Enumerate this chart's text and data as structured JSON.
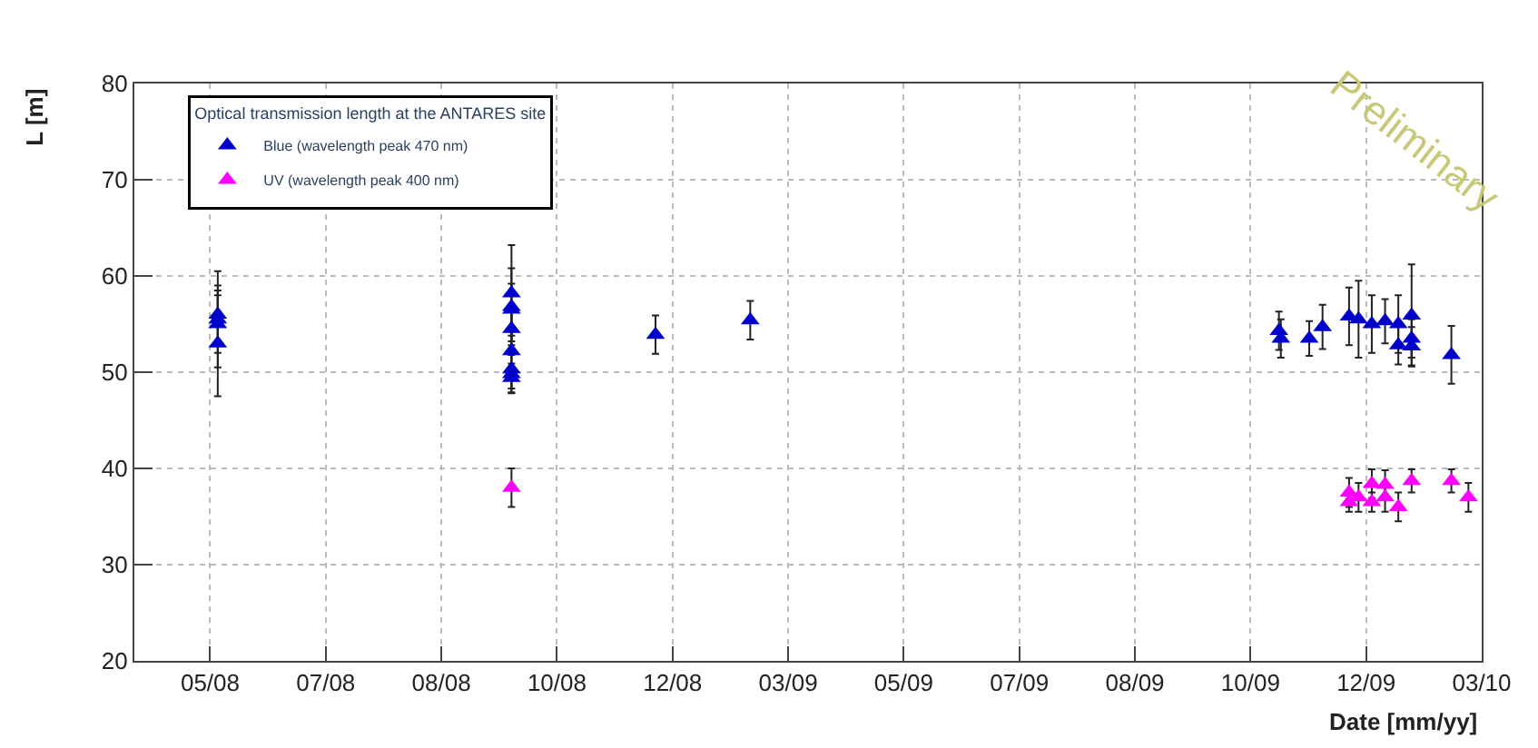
{
  "chart_data": {
    "type": "scatter",
    "xlabel": "Date [mm/yy]",
    "ylabel": "L [m]",
    "legend_title": "Optical transmission length at the ANTARES site",
    "annotations": [
      "Preliminary"
    ],
    "xlim": [
      "2008-03-31",
      "2010-03-12"
    ],
    "xticks": [
      {
        "value": "2008-05-10",
        "label": "05/08"
      },
      {
        "value": "2008-07-10",
        "label": "07/08"
      },
      {
        "value": "2008-09-09",
        "label": "08/08"
      },
      {
        "value": "2008-11-09",
        "label": "10/08"
      },
      {
        "value": "2009-01-09",
        "label": "12/08"
      },
      {
        "value": "2009-03-11",
        "label": "03/09"
      },
      {
        "value": "2009-05-11",
        "label": "05/09"
      },
      {
        "value": "2009-07-11",
        "label": "07/09"
      },
      {
        "value": "2009-09-10",
        "label": "08/09"
      },
      {
        "value": "2009-11-10",
        "label": "10/09"
      },
      {
        "value": "2010-01-10",
        "label": "12/09"
      },
      {
        "value": "2010-03-12",
        "label": "03/10"
      }
    ],
    "ylim": [
      20,
      80
    ],
    "yticks": [
      20,
      30,
      40,
      50,
      60,
      70,
      80
    ],
    "grid": true,
    "legend": "top left",
    "marker": "triangle",
    "series": [
      {
        "name": "Blue (wavelength peak 470 nm)",
        "color": "#0000cc",
        "x": [
          "2008-05-14",
          "2008-05-14",
          "2008-05-14",
          "2008-05-14",
          "2008-10-16",
          "2008-10-16",
          "2008-10-16",
          "2008-10-16",
          "2008-10-16",
          "2008-10-16",
          "2008-10-16",
          "2008-10-16",
          "2008-12-31",
          "2009-02-19",
          "2009-11-25",
          "2009-11-26",
          "2009-12-11",
          "2009-12-18",
          "2010-01-01",
          "2010-01-06",
          "2010-01-13",
          "2010-01-20",
          "2010-01-27",
          "2010-01-27",
          "2010-02-03",
          "2010-02-03",
          "2010-02-03",
          "2010-02-24"
        ],
        "values": [
          56,
          55.5,
          55,
          53,
          58.2,
          56.8,
          56.5,
          54.5,
          52.2,
          50.3,
          49.8,
          49.4,
          53.9,
          55.4,
          54.3,
          53.5,
          53.5,
          54.7,
          55.8,
          55.5,
          55,
          55.3,
          55,
          52.8,
          55.9,
          53.5,
          52.7,
          51.8
        ],
        "errors": [
          3,
          5,
          3,
          5.5,
          5,
          4,
          2.7,
          2,
          2,
          2,
          2,
          1.5,
          2,
          2,
          2,
          2,
          1.8,
          2.3,
          3,
          4,
          3,
          2.3,
          3,
          2,
          5.3,
          2,
          2,
          3
        ]
      },
      {
        "name": "UV (wavelength peak 400 nm)",
        "color": "#ff00ff",
        "x": [
          "2008-10-16",
          "2010-01-01",
          "2010-01-01",
          "2010-01-06",
          "2010-01-13",
          "2010-01-13",
          "2010-01-20",
          "2010-01-20",
          "2010-01-27",
          "2010-02-03",
          "2010-02-24",
          "2010-03-05"
        ],
        "values": [
          38,
          37.5,
          36.5,
          37,
          38.4,
          36.5,
          38.3,
          37,
          36,
          38.7,
          38.7,
          37
        ],
        "errors": [
          2,
          1.5,
          1,
          1.5,
          1.5,
          1,
          1.5,
          1.5,
          1.5,
          1.2,
          1.2,
          1.5
        ]
      }
    ]
  }
}
